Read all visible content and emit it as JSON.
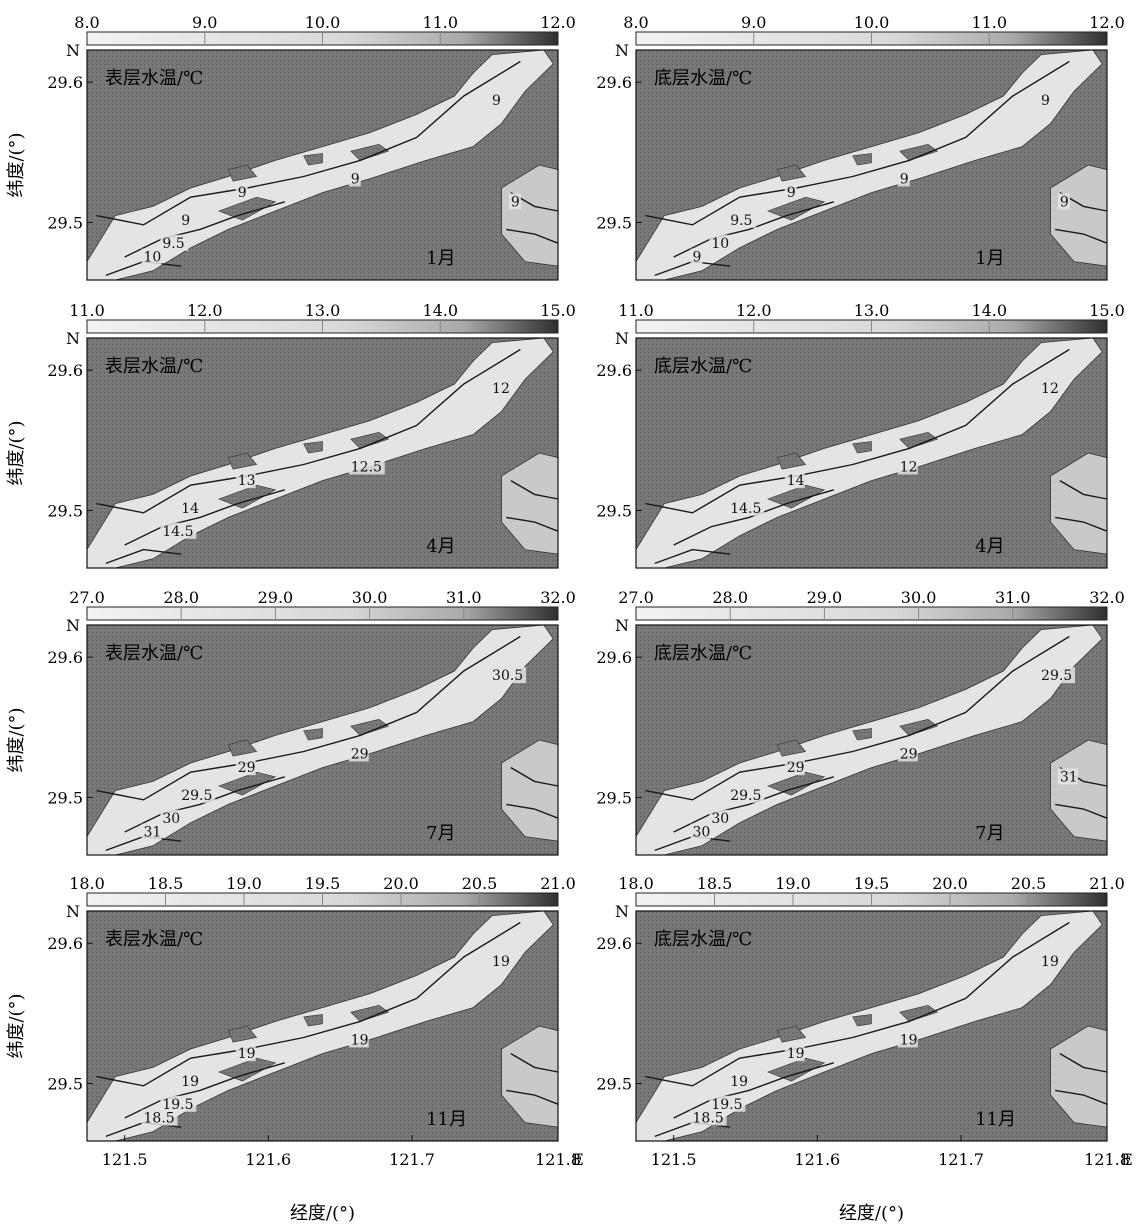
{
  "figure": {
    "ylabel": "纬度/(°)",
    "xlabel": "经度/(°)",
    "north_label": "N",
    "east_label": "E",
    "lat_ticks": [
      "29.6",
      "29.5"
    ],
    "lon_ticks": [
      "121.5",
      "121.6",
      "121.7",
      "121.8"
    ]
  },
  "colors": {
    "land": "#6e6e6e",
    "water_light": "#e4e4e4",
    "water_mid": "#c9c9c9",
    "contour": "#1a1a1a",
    "colorbar_dark": "#2f2f2f"
  },
  "rows": [
    {
      "month": "1月",
      "colorbar_ticks": [
        "8.0",
        "9.0",
        "10.0",
        "11.0",
        "12.0"
      ],
      "panels": [
        {
          "title": "表层水温/℃",
          "contour_labels": [
            "9",
            "9",
            "9",
            "9",
            "9.5",
            "10",
            "9"
          ]
        },
        {
          "title": "底层水温/℃",
          "contour_labels": [
            "9",
            "9",
            "9",
            "9.5",
            "10",
            "9",
            "9"
          ]
        }
      ]
    },
    {
      "month": "4月",
      "colorbar_ticks": [
        "11.0",
        "12.0",
        "13.0",
        "14.0",
        "15.0"
      ],
      "panels": [
        {
          "title": "表层水温/℃",
          "contour_labels": [
            "12",
            "12.5",
            "13",
            "14",
            "14.5"
          ]
        },
        {
          "title": "底层水温/℃",
          "contour_labels": [
            "12",
            "12",
            "14",
            "14.5"
          ]
        }
      ]
    },
    {
      "month": "7月",
      "colorbar_ticks": [
        "27.0",
        "28.0",
        "29.0",
        "30.0",
        "31.0",
        "32.0"
      ],
      "panels": [
        {
          "title": "表层水温/℃",
          "contour_labels": [
            "30.5",
            "29",
            "29",
            "29.5",
            "30",
            "31"
          ]
        },
        {
          "title": "底层水温/℃",
          "contour_labels": [
            "29.5",
            "29",
            "29",
            "29.5",
            "30",
            "30",
            "31"
          ]
        }
      ]
    },
    {
      "month": "11月",
      "colorbar_ticks": [
        "18.0",
        "18.5",
        "19.0",
        "19.5",
        "20.0",
        "20.5",
        "21.0"
      ],
      "panels": [
        {
          "title": "表层水温/℃",
          "contour_labels": [
            "19",
            "19",
            "19",
            "19",
            "19.5",
            "18.5"
          ]
        },
        {
          "title": "底层水温/℃",
          "contour_labels": [
            "19",
            "19",
            "19",
            "19",
            "19.5",
            "18.5"
          ]
        }
      ]
    }
  ]
}
